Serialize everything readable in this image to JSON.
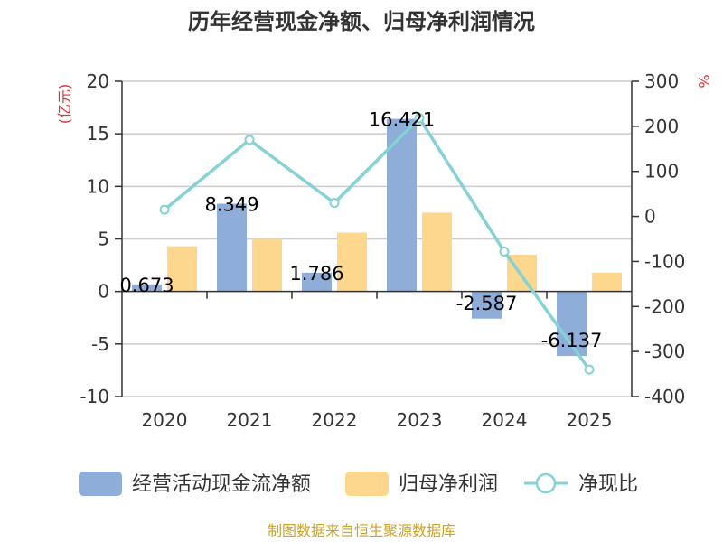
{
  "title": "历年经营现金净额、归母净利润情况",
  "source": "制图数据来自恒生聚源数据库",
  "colors": {
    "cashflow": "#8eadd8",
    "profit": "#fed78f",
    "ratio": "#86d1d6",
    "unit": "#e03030"
  },
  "chart_data": {
    "type": "bar",
    "categories": [
      "2020",
      "2021",
      "2022",
      "2023",
      "2024",
      "2025"
    ],
    "series": [
      {
        "name": "经营活动现金流净额",
        "axis": "left",
        "type": "bar",
        "values": [
          0.673,
          8.349,
          1.786,
          16.421,
          -2.587,
          -6.137
        ],
        "labels": [
          "0.673",
          "8.349",
          "1.786",
          "16.421",
          "-2.587",
          "-6.137"
        ]
      },
      {
        "name": "归母净利润",
        "axis": "left",
        "type": "bar",
        "values": [
          4.3,
          5.0,
          5.6,
          7.5,
          3.5,
          1.8
        ]
      },
      {
        "name": "净现比",
        "axis": "right",
        "type": "line",
        "values": [
          15,
          170,
          30,
          218,
          -78,
          -340
        ]
      }
    ],
    "left_axis": {
      "unit": "(亿元)",
      "min": -10,
      "max": 20,
      "ticks": [
        20,
        15,
        10,
        5,
        0,
        -5,
        -10
      ]
    },
    "right_axis": {
      "unit": "%",
      "min": -400,
      "max": 300,
      "ticks": [
        300,
        200,
        100,
        0,
        -100,
        -200,
        -300,
        -400
      ]
    },
    "legend": [
      "经营活动现金流净额",
      "归母净利润",
      "净现比"
    ],
    "legend_position": "bottom"
  }
}
